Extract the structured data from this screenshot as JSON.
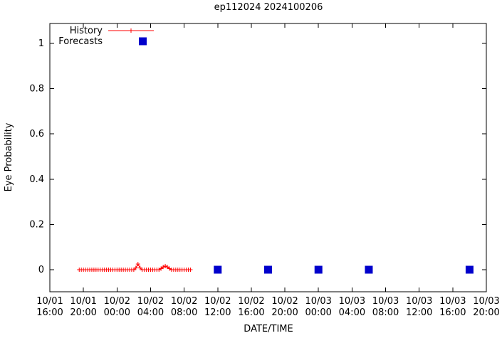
{
  "chart_data": {
    "type": "line",
    "title": "ep112024 2024100206",
    "xlabel": "DATE/TIME",
    "ylabel": "Eye Probability",
    "grid": false,
    "legend_position": "top-left",
    "x_ticks": [
      "10/01 16:00",
      "10/01 20:00",
      "10/02 00:00",
      "10/02 04:00",
      "10/02 08:00",
      "10/02 12:00",
      "10/02 16:00",
      "10/02 20:00",
      "10/03 00:00",
      "10/03 04:00",
      "10/03 08:00",
      "10/03 12:00",
      "10/03 16:00",
      "10/03 20:00"
    ],
    "y_ticks": [
      "0",
      "0.2",
      "0.4",
      "0.6",
      "0.8",
      "1"
    ],
    "ylim": [
      -0.098,
      1.088
    ],
    "series": [
      {
        "name": "History",
        "style": "lines-with-plus-markers",
        "color": "#ff0000",
        "times": [
          "10/01 19:30",
          "10/01 19:45",
          "10/01 20:00",
          "10/01 20:15",
          "10/01 20:30",
          "10/01 20:45",
          "10/01 21:00",
          "10/01 21:15",
          "10/01 21:30",
          "10/01 21:45",
          "10/01 22:00",
          "10/01 22:15",
          "10/01 22:30",
          "10/01 22:45",
          "10/01 23:00",
          "10/01 23:15",
          "10/01 23:30",
          "10/01 23:45",
          "10/02 00:00",
          "10/02 00:15",
          "10/02 00:30",
          "10/02 00:45",
          "10/02 01:00",
          "10/02 01:15",
          "10/02 01:30",
          "10/02 01:45",
          "10/02 02:00",
          "10/02 02:15",
          "10/02 02:30",
          "10/02 02:45",
          "10/02 03:00",
          "10/02 03:15",
          "10/02 03:30",
          "10/02 03:45",
          "10/02 04:00",
          "10/02 04:15",
          "10/02 04:30",
          "10/02 04:45",
          "10/02 05:00",
          "10/02 05:15",
          "10/02 05:30",
          "10/02 05:45",
          "10/02 06:00",
          "10/02 06:15",
          "10/02 06:30",
          "10/02 06:45",
          "10/02 07:00",
          "10/02 07:15",
          "10/02 07:30",
          "10/02 07:45",
          "10/02 08:00",
          "10/02 08:15",
          "10/02 08:30",
          "10/02 08:45"
        ],
        "values": [
          0,
          0,
          0,
          0,
          0,
          0,
          0,
          0,
          0,
          0,
          0,
          0,
          0,
          0,
          0,
          0,
          0,
          0,
          0,
          0,
          0,
          0,
          0,
          0,
          0,
          0,
          0,
          0.008,
          0.025,
          0.008,
          0,
          0,
          0,
          0,
          0,
          0,
          0,
          0,
          0,
          0.005,
          0.012,
          0.016,
          0.012,
          0.005,
          0,
          0,
          0,
          0,
          0,
          0,
          0,
          0,
          0,
          0
        ]
      },
      {
        "name": "Forecasts",
        "style": "filled-square-points",
        "color": "#0000cc",
        "times": [
          "10/02 12:00",
          "10/02 18:00",
          "10/03 00:00",
          "10/03 06:00",
          "10/03 18:00"
        ],
        "values": [
          0,
          0,
          0,
          0,
          0
        ]
      }
    ]
  }
}
